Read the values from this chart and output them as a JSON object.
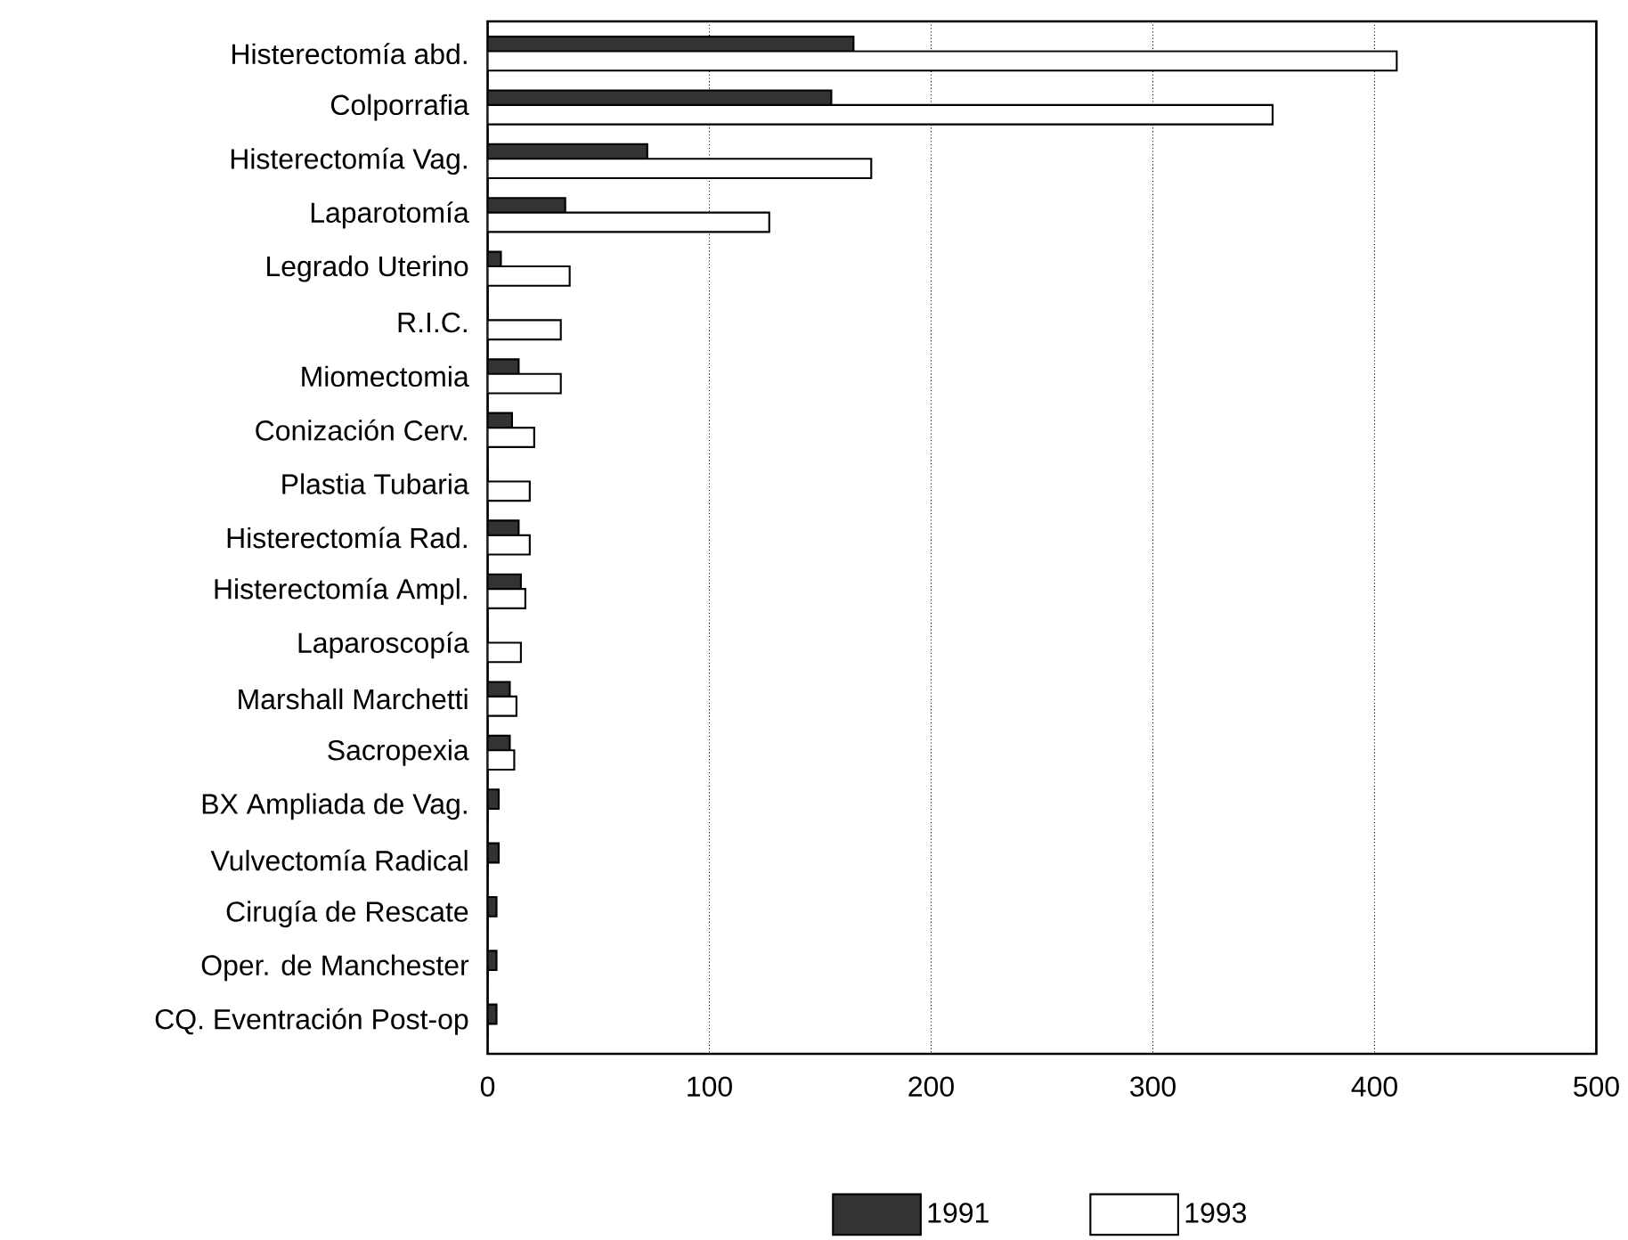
{
  "chart_data": {
    "type": "bar",
    "orientation": "horizontal",
    "categories": [
      "Histerectomía abd.",
      "Colporrafia",
      "Histerectomía Vag.",
      "Laparotomía",
      "Legrado Uterino",
      "R.I.C.",
      "Miomectomia",
      "Conización Cerv.",
      "Plastia Tubaria",
      "Histerectomía Rad.",
      "Histerectomía Ampl.",
      "Laparoscopía",
      "Marshall Marchetti",
      "Sacropexia",
      "BX Ampliada de Vag.",
      "Vulvectomía Radical",
      "Cirugía de Rescate",
      "Oper. de Manchester",
      "CQ. Eventración Post-op"
    ],
    "series": [
      {
        "name": "1991",
        "color": "#333333",
        "values": [
          165,
          155,
          72,
          35,
          6,
          0,
          14,
          11,
          0,
          14,
          15,
          0,
          10,
          10,
          5,
          5,
          4,
          4,
          4
        ]
      },
      {
        "name": "1993",
        "color": "#ffffff",
        "values": [
          410,
          354,
          173,
          127,
          37,
          33,
          33,
          21,
          19,
          19,
          17,
          15,
          13,
          12,
          0,
          0,
          0,
          0,
          0
        ]
      }
    ],
    "xlim": [
      0,
      500
    ],
    "xticks": [
      0,
      100,
      200,
      300,
      400,
      500
    ],
    "grid": "x",
    "legend": "bottom"
  }
}
